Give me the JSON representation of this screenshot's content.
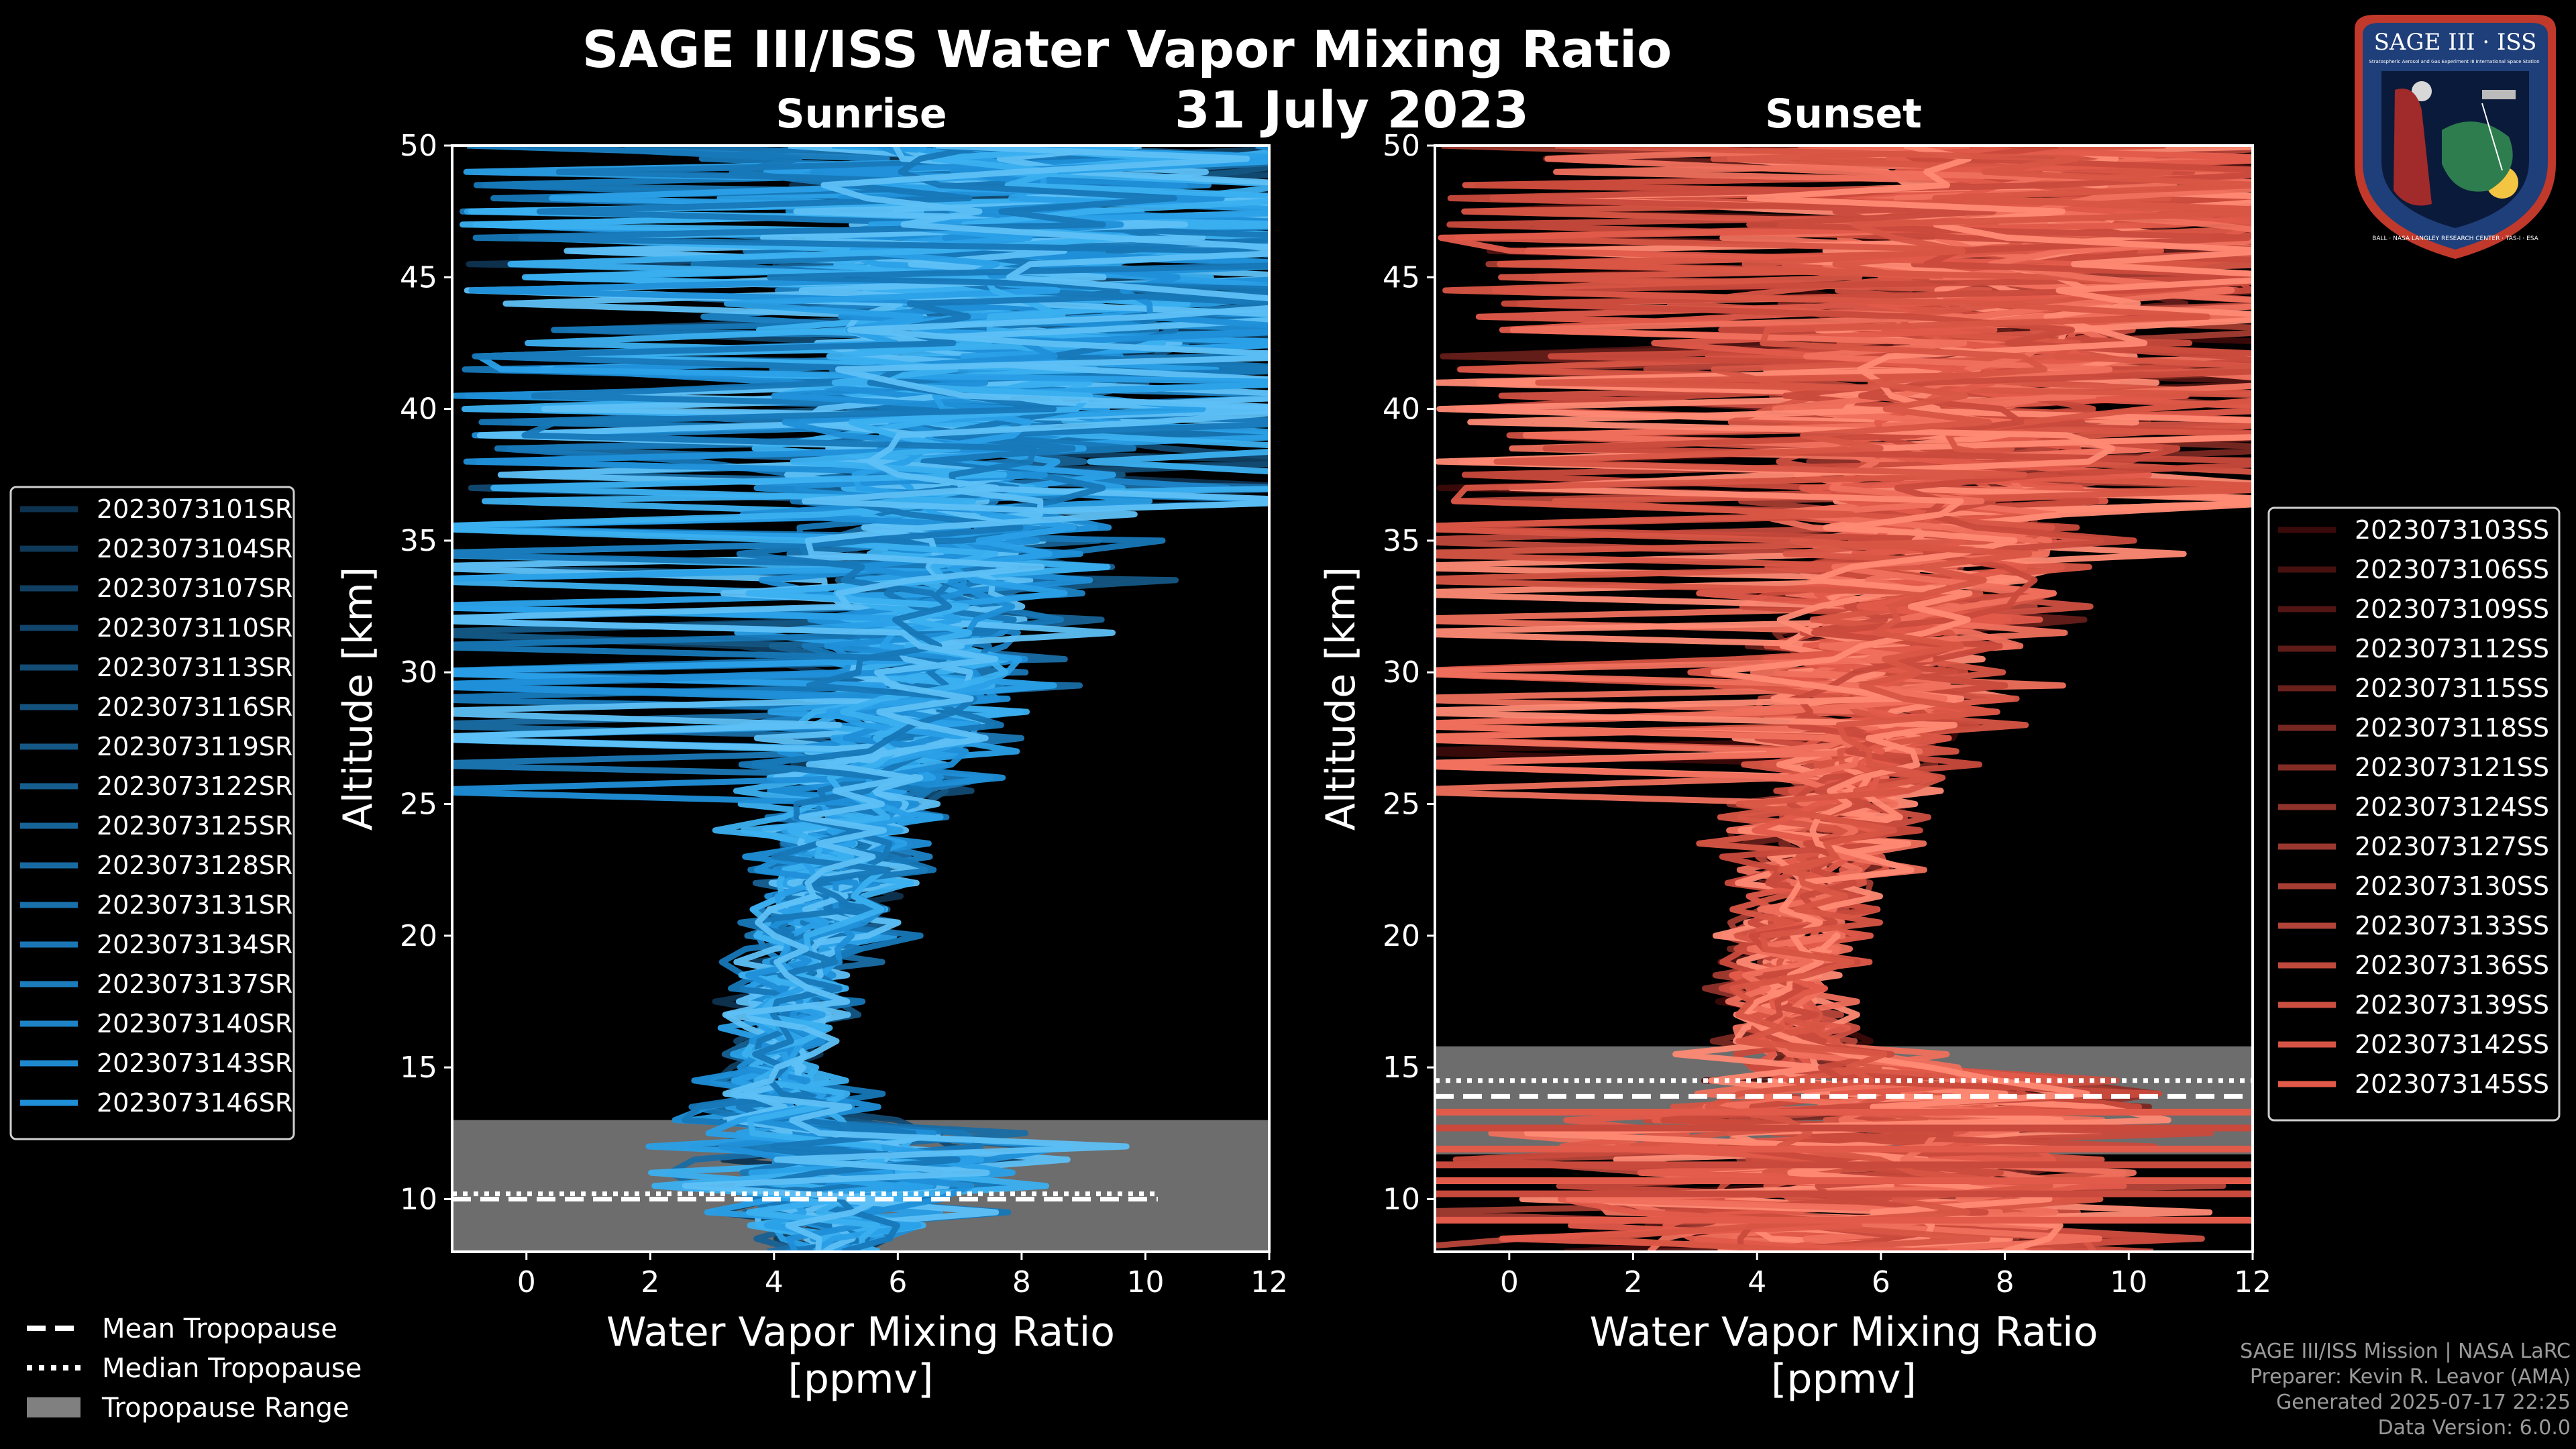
{
  "title": "SAGE III/ISS Water Vapor Mixing Ratio",
  "date": "31 July 2023",
  "colors": {
    "background": "#000000",
    "sunrise": "#1f8fd8",
    "sunset": "#e25a4a",
    "tropopause_range": "#808080",
    "text": "#ffffff",
    "footer": "#9a9a9a"
  },
  "chart_data": [
    {
      "type": "line",
      "panel": "Sunrise",
      "title": "Sunrise",
      "xlabel": "Water Vapor Mixing Ratio\n[ppmv]",
      "ylabel": "Altitude [km]",
      "xlim": [
        -1.2,
        12
      ],
      "ylim": [
        8,
        50
      ],
      "xticks": [
        0,
        2,
        4,
        6,
        8,
        10,
        12
      ],
      "yticks": [
        10,
        15,
        20,
        25,
        30,
        35,
        40,
        45,
        50
      ],
      "tropopause": {
        "range": [
          8,
          13
        ],
        "mean": 10.0,
        "median": 10.2,
        "xmax": 10.2
      },
      "legend_position": "outside-left",
      "series_names": [
        "2023073101SR",
        "2023073104SR",
        "2023073107SR",
        "2023073110SR",
        "2023073113SR",
        "2023073116SR",
        "2023073119SR",
        "2023073122SR",
        "2023073125SR",
        "2023073128SR",
        "2023073131SR",
        "2023073134SR",
        "2023073137SR",
        "2023073140SR",
        "2023073143SR",
        "2023073146SR"
      ],
      "profile_envelope": {
        "altitude": [
          8,
          10,
          12,
          13,
          15,
          18,
          20,
          22,
          25,
          28,
          30,
          33,
          36,
          40,
          43,
          46,
          50
        ],
        "mean": [
          4.8,
          5.5,
          5.8,
          4.2,
          4.0,
          4.3,
          4.6,
          5.0,
          5.4,
          5.9,
          6.2,
          6.6,
          6.9,
          7.2,
          7.6,
          8.0,
          8.0
        ],
        "spread": [
          0.8,
          2.5,
          3.5,
          2.0,
          0.8,
          1.0,
          1.2,
          1.4,
          1.7,
          2.1,
          2.5,
          2.8,
          3.0,
          3.6,
          4.2,
          5.0,
          5.5
        ]
      }
    },
    {
      "type": "line",
      "panel": "Sunset",
      "title": "Sunset",
      "xlabel": "Water Vapor Mixing Ratio\n[ppmv]",
      "ylabel": "Altitude [km]",
      "xlim": [
        -1.2,
        12
      ],
      "ylim": [
        8,
        50
      ],
      "xticks": [
        0,
        2,
        4,
        6,
        8,
        10,
        12
      ],
      "yticks": [
        10,
        15,
        20,
        25,
        30,
        35,
        40,
        45,
        50
      ],
      "tropopause": {
        "range": [
          11.7,
          15.8
        ],
        "mean": 13.9,
        "median": 14.5,
        "xmax": 12
      },
      "legend_position": "outside-right",
      "series_names": [
        "2023073103SS",
        "2023073106SS",
        "2023073109SS",
        "2023073112SS",
        "2023073115SS",
        "2023073118SS",
        "2023073121SS",
        "2023073124SS",
        "2023073127SS",
        "2023073130SS",
        "2023073133SS",
        "2023073136SS",
        "2023073139SS",
        "2023073142SS",
        "2023073145SS"
      ],
      "profile_envelope": {
        "altitude": [
          8,
          10,
          12,
          14,
          15,
          16,
          18,
          20,
          22,
          25,
          28,
          30,
          33,
          36,
          40,
          43,
          46,
          50
        ],
        "mean": [
          6,
          6,
          6,
          6.5,
          5.5,
          4.6,
          4.4,
          4.6,
          5.0,
          5.4,
          5.8,
          6.1,
          6.5,
          6.9,
          7.3,
          7.7,
          8.1,
          8.1
        ],
        "spread": [
          6,
          6,
          6,
          4.0,
          2.5,
          1.2,
          1.0,
          1.2,
          1.4,
          1.7,
          2.0,
          2.4,
          2.8,
          3.1,
          3.8,
          4.4,
          5.0,
          5.5
        ]
      }
    }
  ],
  "shared_legend": {
    "mean_tropopause": "Mean Tropopause",
    "median_tropopause": "Median Tropopause",
    "tropopause_range": "Tropopause Range"
  },
  "footer": {
    "mission": "SAGE III/ISS Mission | NASA LaRC",
    "preparer": "Preparer: Kevin R. Leavor (AMA)",
    "generated": "Generated 2025-07-17 22:25",
    "version": "Data Version: 6.0.0"
  },
  "logo": {
    "top_text": "SAGE III · ISS",
    "sub_left": "Stratospheric Aerosol and Gas Experiment III",
    "sub_right": "International Space Station",
    "ring_text": "BALL · NASA LANGLEY RESEARCH CENTER · TAS-I · ESA"
  }
}
